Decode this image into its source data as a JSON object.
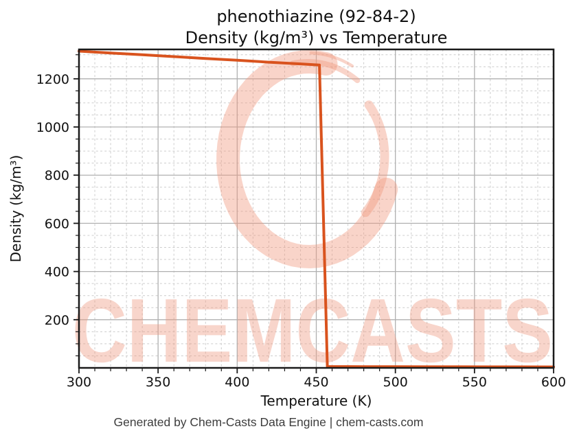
{
  "header": {
    "title_line1": "phenothiazine (92-84-2)",
    "title_line2": "Density (kg/m³) vs Temperature"
  },
  "footer": {
    "text": "Generated by Chem-Casts Data Engine | chem-casts.com"
  },
  "watermark": {
    "text": "CHEMCASTS",
    "logo": "brush-ring-logo"
  },
  "colors": {
    "line": "#d9531e",
    "grid_major": "#b0b0b0",
    "grid_minor": "#cccccc",
    "axis_spine": "#1a1a1a",
    "tick_label": "#111111",
    "title_text": "#111111",
    "watermark": "#f0987e",
    "footer_text": "#3d3d3d",
    "background": "#ffffff"
  },
  "chart_data": {
    "type": "line",
    "title": "phenothiazine (92-84-2)\nDensity (kg/m³) vs Temperature",
    "xlabel": "Temperature (K)",
    "ylabel": "Density (kg/m³)",
    "xlim": [
      300,
      600
    ],
    "ylim": [
      0,
      1322
    ],
    "x_major_ticks": [
      300,
      350,
      400,
      450,
      500,
      550,
      600
    ],
    "x_minor_tick_step": 10,
    "y_major_ticks": [
      200,
      400,
      600,
      800,
      1000,
      1200
    ],
    "y_minor_tick_step": 50,
    "grid": {
      "major": "solid",
      "minor": "dashed"
    },
    "legend": "none",
    "series": [
      {
        "name": "Density",
        "color": "#d9531e",
        "x": [
          300,
          320,
          340,
          360,
          380,
          400,
          420,
          440,
          450,
          452,
          457,
          480,
          500,
          520,
          540,
          560,
          580,
          600
        ],
        "y": [
          1315,
          1307,
          1300,
          1292,
          1284,
          1277,
          1269,
          1262,
          1258,
          1257,
          5.3,
          5.1,
          4.9,
          4.7,
          4.5,
          4.3,
          4.2,
          4.0
        ]
      }
    ]
  }
}
